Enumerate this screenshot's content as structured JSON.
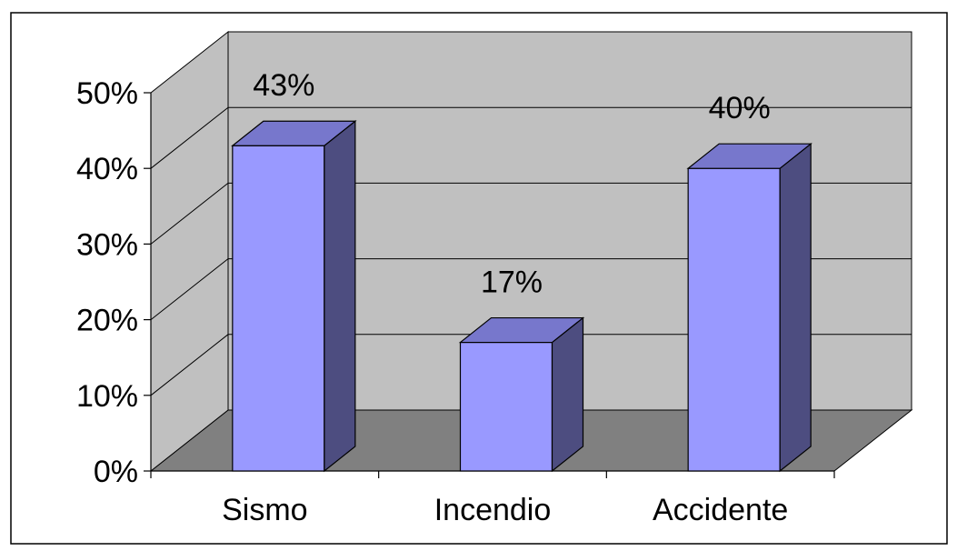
{
  "chart_data": {
    "type": "bar",
    "title": "",
    "xlabel": "",
    "ylabel": "",
    "categories": [
      "Sismo",
      "Incendio",
      "Accidente"
    ],
    "values": [
      43,
      17,
      40
    ],
    "data_labels": [
      "43%",
      "17%",
      "40%"
    ],
    "ylim": [
      0,
      50
    ],
    "yticks": [
      {
        "value": 0,
        "label": "0%"
      },
      {
        "value": 10,
        "label": "10%"
      },
      {
        "value": 20,
        "label": "20%"
      },
      {
        "value": 30,
        "label": "30%"
      },
      {
        "value": 40,
        "label": "40%"
      },
      {
        "value": 50,
        "label": "50%"
      }
    ],
    "grid": true,
    "legend": "none",
    "style": "3d",
    "colors": {
      "bar_front": "#9999ff",
      "bar_top": "#7777cc",
      "bar_side": "#4d4d80",
      "back_wall": "#c0c0c0",
      "side_wall": "#c0c0c0",
      "floor": "#808080"
    }
  }
}
